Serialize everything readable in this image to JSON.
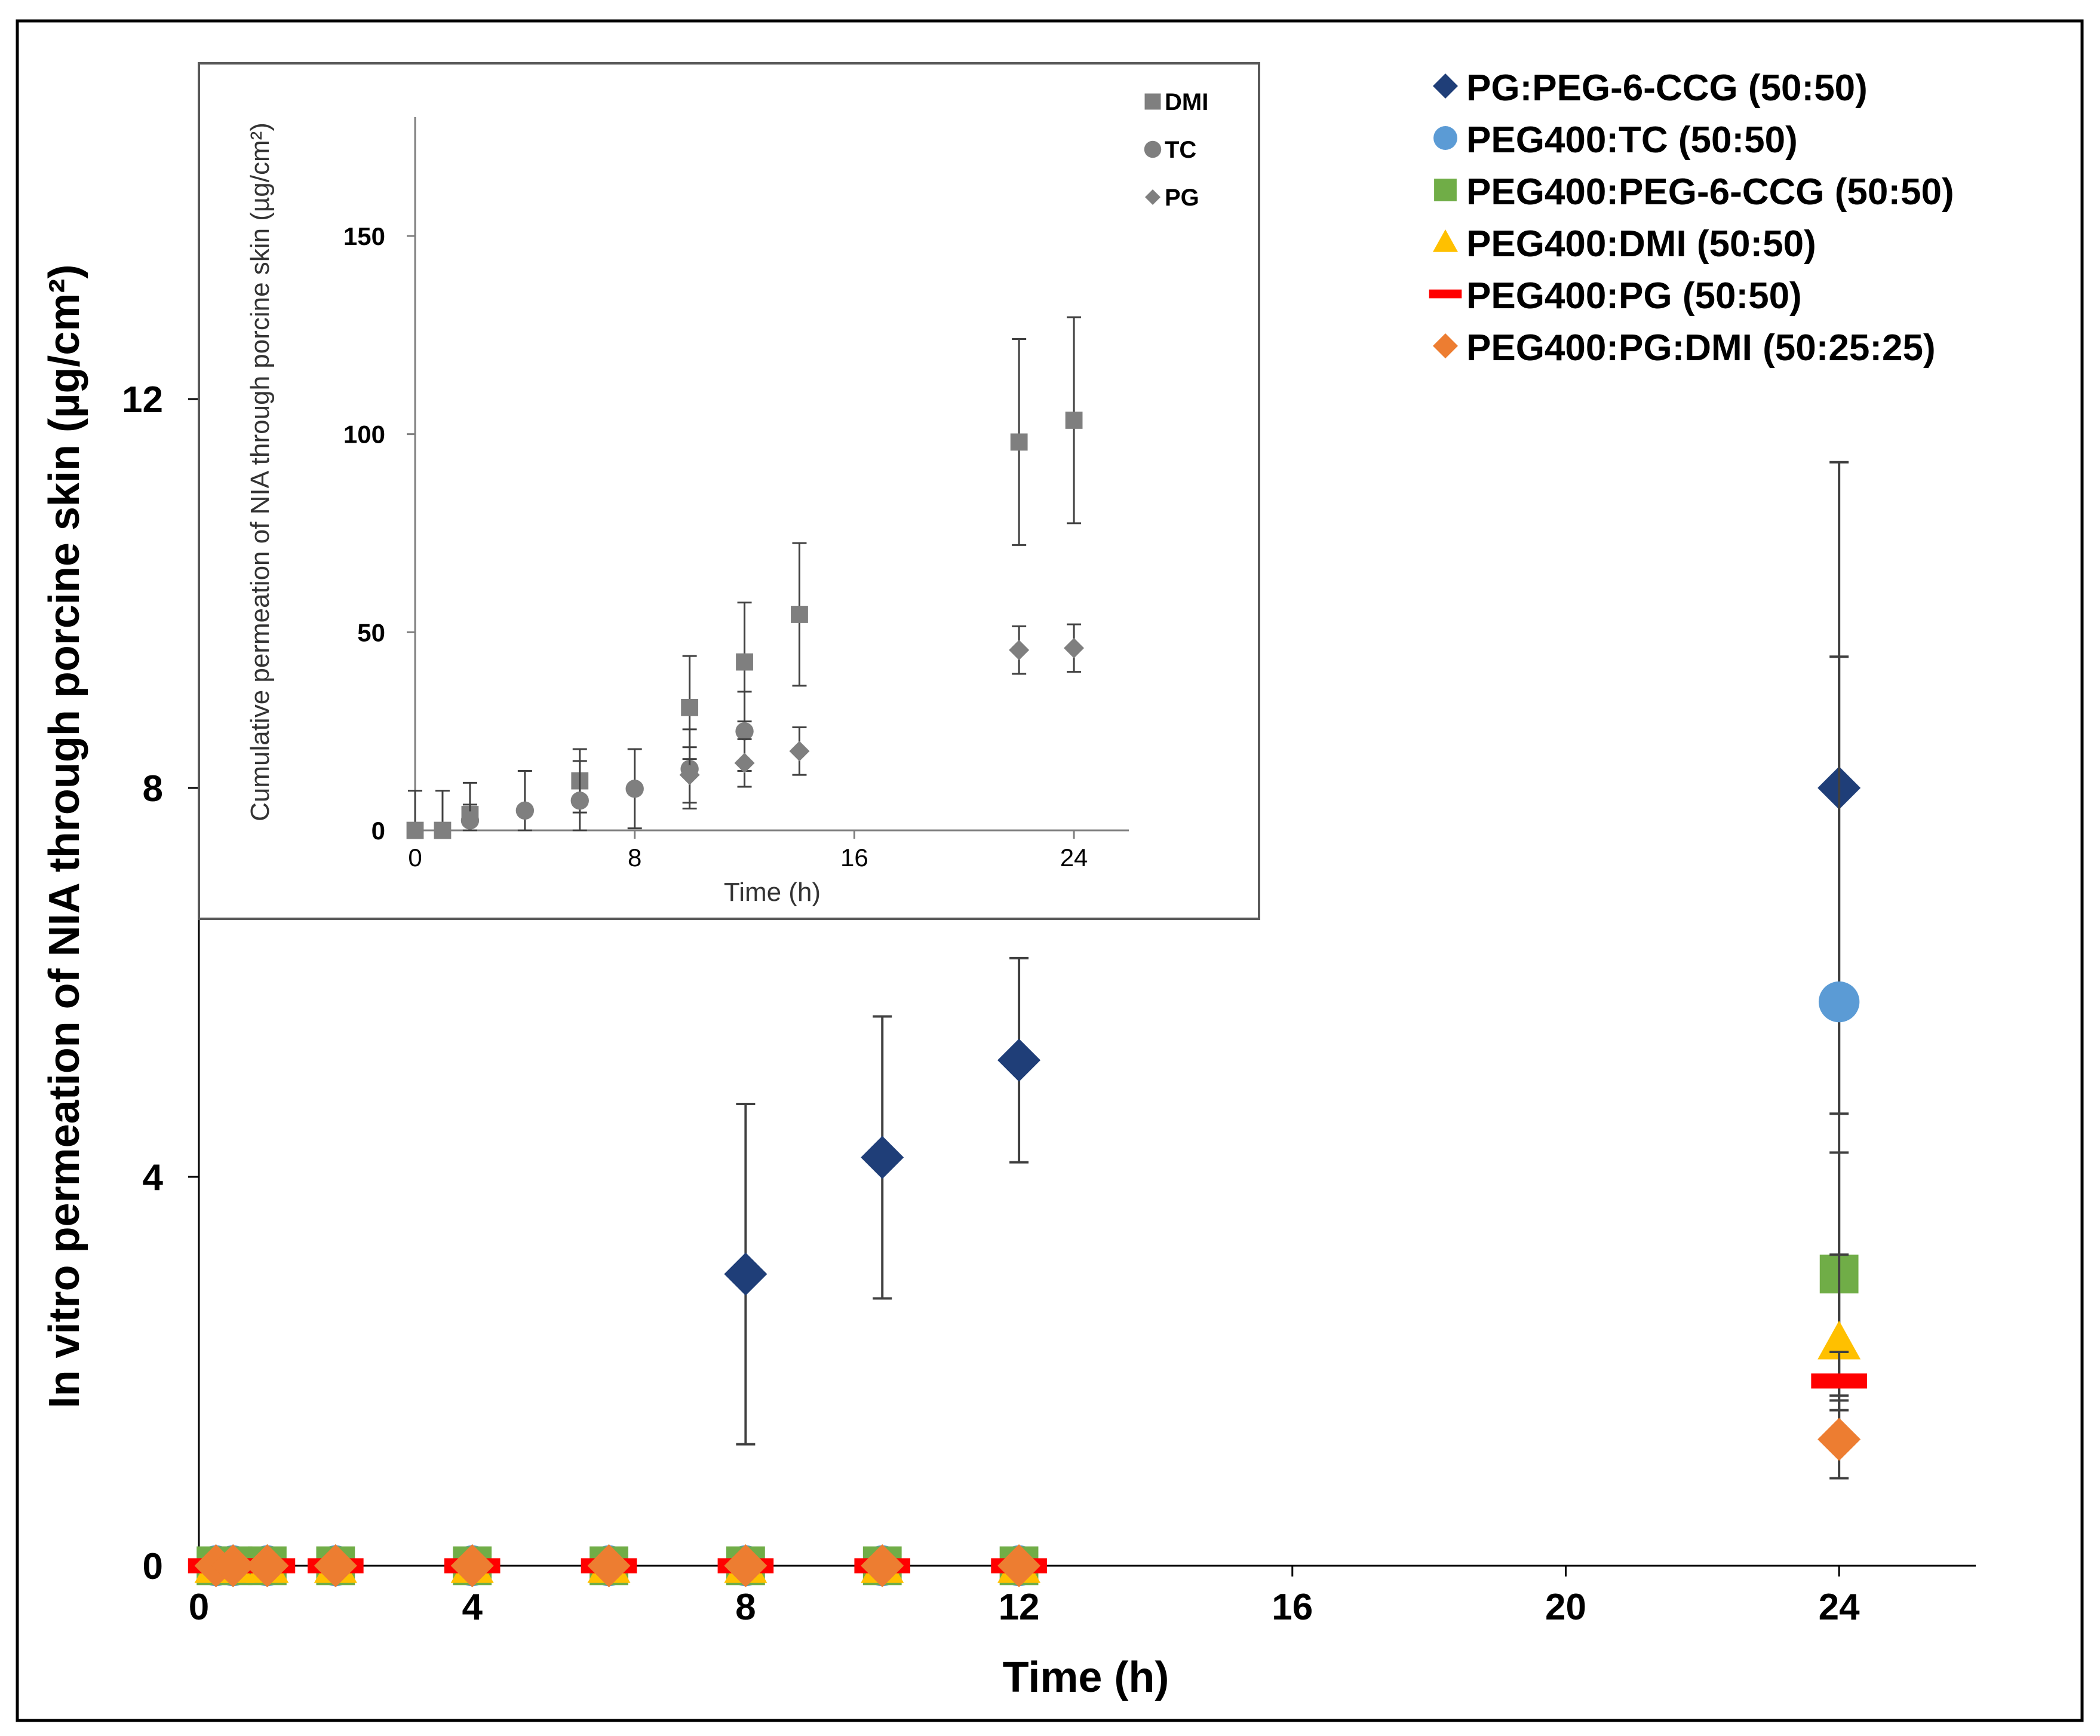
{
  "chart_data": [
    {
      "type": "scatter",
      "title": "",
      "xlabel": "Time (h)",
      "ylabel": "In vitro permeation of NIA through porcine skin (µg/cm²)",
      "xlim": [
        0,
        26
      ],
      "ylim": [
        0,
        14.5
      ],
      "xticks": [
        0,
        4,
        8,
        12,
        16,
        20,
        24
      ],
      "yticks": [
        0,
        4,
        8,
        12
      ],
      "legend_position": "top-right",
      "series": [
        {
          "name": "PG:PEG-6-CCG (50:50)",
          "marker": "diamond",
          "color": "#1F3E78",
          "x": [
            0.25,
            0.5,
            1,
            2,
            4,
            6,
            8,
            10,
            12,
            24
          ],
          "y": [
            0,
            0,
            0,
            0,
            0,
            0,
            3.0,
            4.2,
            5.2,
            8.0
          ],
          "err": [
            0,
            0,
            0,
            0,
            0,
            0,
            1.75,
            1.45,
            1.05,
            3.35
          ]
        },
        {
          "name": "PEG400:TC (50:50)",
          "marker": "circle",
          "color": "#5B9BD5",
          "x": [
            0.25,
            0.5,
            1,
            2,
            4,
            6,
            8,
            10,
            12,
            24
          ],
          "y": [
            0,
            0,
            0,
            0,
            0,
            0,
            0,
            0,
            0,
            5.8
          ],
          "err": [
            0,
            0,
            0,
            0,
            0,
            0,
            0,
            0,
            0,
            3.55
          ]
        },
        {
          "name": "PEG400:PEG-6-CCG (50:50)",
          "marker": "square",
          "color": "#70AD47",
          "x": [
            0.25,
            0.5,
            1,
            2,
            4,
            6,
            8,
            10,
            12,
            24
          ],
          "y": [
            0,
            0,
            0,
            0,
            0,
            0,
            0,
            0,
            0,
            3.0
          ],
          "err": [
            0,
            0,
            0,
            0,
            0,
            0,
            0,
            0,
            0,
            1.25
          ]
        },
        {
          "name": "PEG400:DMI (50:50)",
          "marker": "triangle",
          "color": "#FFC000",
          "x": [
            0.25,
            0.5,
            1,
            2,
            4,
            6,
            8,
            10,
            12,
            24
          ],
          "y": [
            0,
            0,
            0,
            0,
            0,
            0,
            0,
            0,
            0,
            2.3
          ],
          "err": [
            0,
            0,
            0,
            0,
            0,
            0,
            0,
            0,
            0,
            0.9
          ]
        },
        {
          "name": "PEG400:PG (50:50)",
          "marker": "dash",
          "color": "#FF0000",
          "x": [
            0.25,
            0.5,
            1,
            2,
            4,
            6,
            8,
            10,
            12,
            24
          ],
          "y": [
            0,
            0,
            0,
            0,
            0,
            0,
            0,
            0,
            0,
            1.9
          ],
          "err": [
            0,
            0,
            0,
            0,
            0,
            0,
            0,
            0,
            0,
            0.3
          ]
        },
        {
          "name": "PEG400:PG:DMI (50:25:25)",
          "marker": "diamond",
          "color": "#ED7D31",
          "x": [
            0.25,
            0.5,
            1,
            2,
            4,
            6,
            8,
            10,
            12,
            24
          ],
          "y": [
            0,
            0,
            0,
            0,
            0,
            0,
            0,
            0,
            0,
            1.3
          ],
          "err": [
            0,
            0,
            0,
            0,
            0,
            0,
            0,
            0,
            0,
            0.4
          ]
        }
      ]
    },
    {
      "type": "scatter",
      "title": "",
      "xlabel": "Time (h)",
      "ylabel": "Cumulative permeation of NIA through porcine skin (µg/cm²)",
      "xlim": [
        0,
        26
      ],
      "ylim": [
        0,
        180
      ],
      "xticks": [
        0,
        8,
        16,
        24
      ],
      "yticks": [
        0,
        50,
        100,
        150
      ],
      "legend_position": "top-right",
      "series": [
        {
          "name": "DMI",
          "marker": "square",
          "color": "#7F7F7F",
          "x": [
            0,
            1,
            2,
            6,
            10,
            12,
            14,
            22,
            24
          ],
          "y": [
            0,
            0,
            4,
            12.5,
            31,
            42.5,
            54.5,
            98,
            103.5
          ],
          "err": [
            10,
            10,
            8,
            8,
            13,
            15,
            18,
            26,
            26
          ]
        },
        {
          "name": "TC",
          "marker": "circle",
          "color": "#7F7F7F",
          "x": [
            2,
            4,
            6,
            8,
            10,
            12
          ],
          "y": [
            2.5,
            5,
            7.5,
            10.5,
            15.5,
            25
          ],
          "err": [
            4,
            10,
            10,
            10,
            10,
            10
          ]
        },
        {
          "name": "PG",
          "marker": "diamond",
          "color": "#7F7F7F",
          "x": [
            10,
            12,
            14,
            22,
            24
          ],
          "y": [
            14,
            17,
            20,
            45.5,
            46
          ],
          "err": [
            7,
            6,
            6,
            6,
            6
          ]
        }
      ]
    }
  ]
}
